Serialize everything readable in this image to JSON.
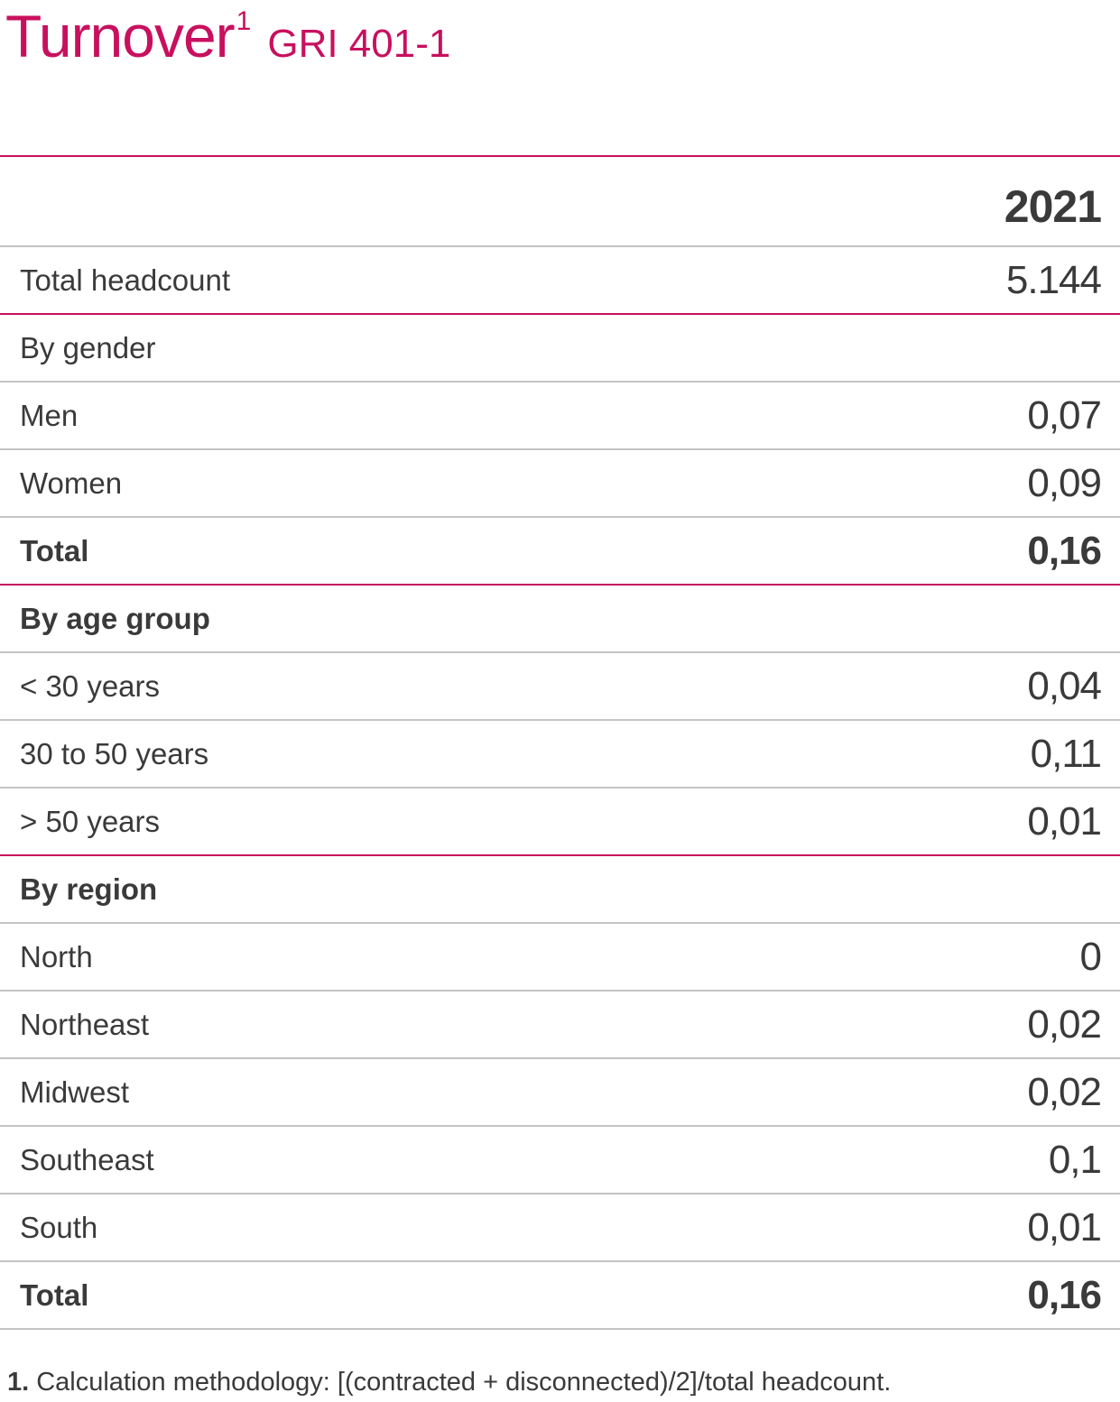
{
  "title": {
    "main": "Turnover",
    "superscript": "1",
    "code": "GRI 401-1"
  },
  "colors": {
    "accent": "#c8105f",
    "text": "#3a3a3a",
    "rule": "#c4c4c4"
  },
  "table": {
    "year_header": "2021",
    "rows": [
      {
        "label": "Total headcount",
        "value": "5.144"
      },
      {
        "label": "By gender",
        "value": ""
      },
      {
        "label": "Men",
        "value": "0,07"
      },
      {
        "label": "Women",
        "value": "0,09"
      },
      {
        "label": "Total",
        "value": "0,16"
      },
      {
        "label": "By age group",
        "value": ""
      },
      {
        "label": "< 30 years",
        "value": "0,04"
      },
      {
        "label": "30 to 50 years",
        "value": "0,11"
      },
      {
        "label": "> 50 years",
        "value": "0,01"
      },
      {
        "label": "By region",
        "value": ""
      },
      {
        "label": "North",
        "value": "0"
      },
      {
        "label": "Northeast",
        "value": "0,02"
      },
      {
        "label": "Midwest",
        "value": "0,02"
      },
      {
        "label": "Southeast",
        "value": "0,1"
      },
      {
        "label": "South",
        "value": "0,01"
      },
      {
        "label": "Total",
        "value": "0,16"
      }
    ]
  },
  "footnote": {
    "number": "1.",
    "text": "Calculation methodology: [(contracted + disconnected)/2]/total headcount."
  }
}
